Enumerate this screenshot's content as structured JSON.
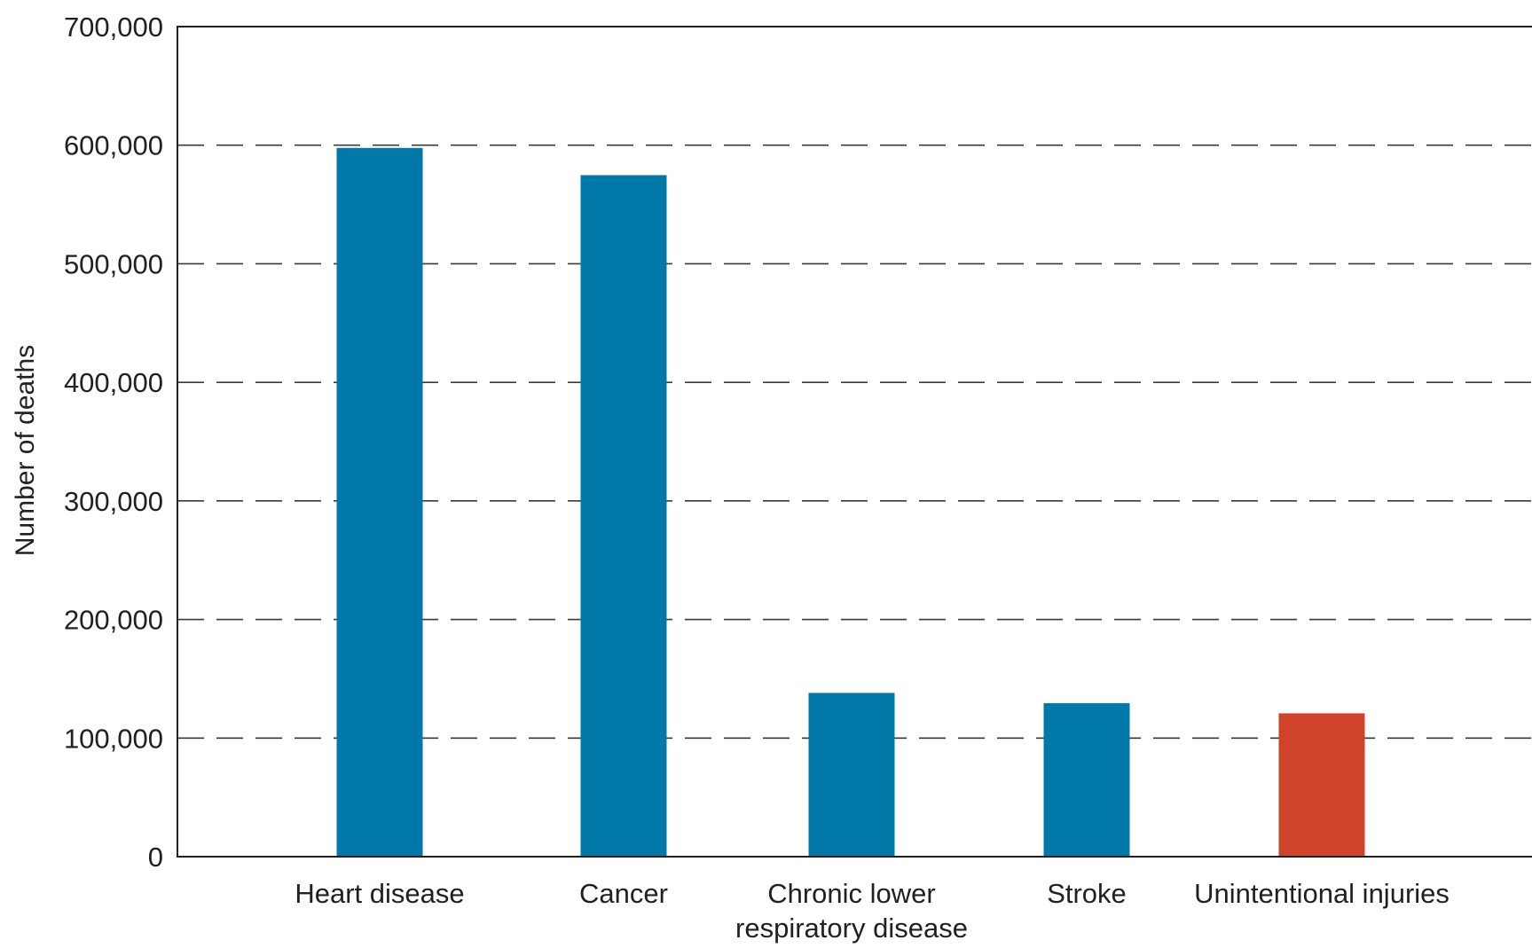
{
  "chart_data": {
    "type": "bar",
    "title": "",
    "xlabel": "",
    "ylabel": "Number of deaths",
    "categories": [
      [
        "Heart disease"
      ],
      [
        "Cancer"
      ],
      [
        "Chronic lower",
        "respiratory disease"
      ],
      [
        "Stroke"
      ],
      [
        "Unintentional injuries"
      ]
    ],
    "values": [
      597689,
      574743,
      138080,
      129476,
      120859
    ],
    "bar_colors": [
      "#0079a8",
      "#0079a8",
      "#0079a8",
      "#0079a8",
      "#d0432b"
    ],
    "ylim": [
      0,
      700000
    ],
    "yticks": [
      0,
      100000,
      200000,
      300000,
      400000,
      500000,
      600000,
      700000
    ],
    "ytick_labels": [
      "0",
      "100,000",
      "200,000",
      "300,000",
      "400,000",
      "500,000",
      "600,000",
      "700,000"
    ],
    "grid": "horizontal dashed",
    "legend": "none"
  },
  "colors": {
    "bar": "#0079a8",
    "highlight_bar": "#d0432b",
    "axis": "#231f20",
    "grid": "#3a3a3a"
  }
}
